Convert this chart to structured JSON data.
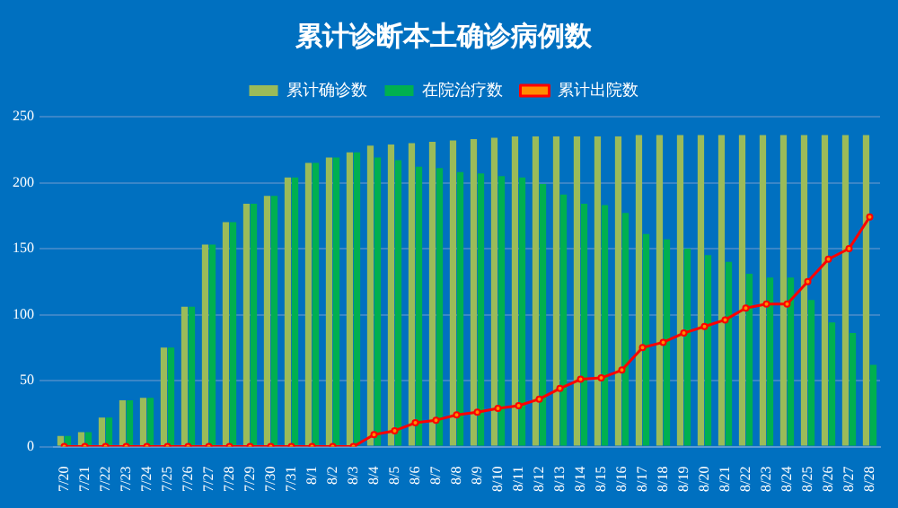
{
  "chart_data": {
    "type": "bar",
    "title": "累计诊断本土确诊病例数",
    "categories": [
      "7/20",
      "7/21",
      "7/22",
      "7/23",
      "7/24",
      "7/25",
      "7/26",
      "7/27",
      "7/28",
      "7/29",
      "7/30",
      "7/31",
      "8/1",
      "8/2",
      "8/3",
      "8/4",
      "8/5",
      "8/6",
      "8/7",
      "8/8",
      "8/9",
      "8/10",
      "8/11",
      "8/12",
      "8/13",
      "8/14",
      "8/15",
      "8/16",
      "8/17",
      "8/18",
      "8/19",
      "8/20",
      "8/21",
      "8/22",
      "8/23",
      "8/24",
      "8/25",
      "8/26",
      "8/27",
      "8/28"
    ],
    "series": [
      {
        "name": "累计确诊数",
        "color": "#9bbb59",
        "values": [
          8,
          11,
          22,
          35,
          37,
          75,
          106,
          153,
          170,
          184,
          190,
          204,
          215,
          219,
          223,
          228,
          229,
          230,
          231,
          232,
          233,
          234,
          235,
          235,
          235,
          235,
          235,
          235,
          236,
          236,
          236,
          236,
          236,
          236,
          236,
          236,
          236,
          236,
          236,
          236
        ]
      },
      {
        "name": "在院治疗数",
        "color": "#00b050",
        "values": [
          8,
          11,
          22,
          35,
          37,
          75,
          106,
          153,
          170,
          184,
          190,
          204,
          215,
          219,
          223,
          219,
          217,
          212,
          211,
          208,
          207,
          205,
          204,
          199,
          191,
          184,
          183,
          177,
          161,
          157,
          150,
          145,
          140,
          131,
          128,
          128,
          111,
          94,
          86,
          62
        ]
      },
      {
        "name": "累计出院数",
        "type": "line",
        "color": "#ff0000",
        "values": [
          0,
          0,
          0,
          0,
          0,
          0,
          0,
          0,
          0,
          0,
          0,
          0,
          0,
          0,
          0,
          9,
          12,
          18,
          20,
          24,
          26,
          29,
          31,
          36,
          44,
          51,
          52,
          58,
          75,
          79,
          86,
          91,
          96,
          105,
          108,
          108,
          125,
          142,
          150,
          174
        ]
      }
    ],
    "ylim": [
      0,
      250
    ],
    "yticks": [
      0,
      50,
      100,
      150,
      200,
      250
    ],
    "grid": "y",
    "legend": "top",
    "marker": "circle"
  }
}
